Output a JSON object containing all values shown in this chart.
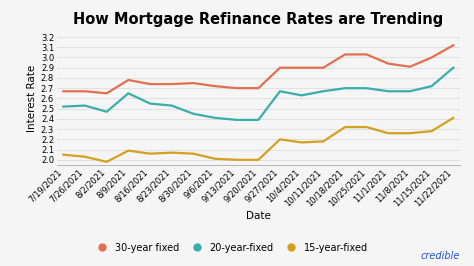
{
  "title": "How Mortgage Refinance Rates are Trending",
  "xlabel": "Date",
  "ylabel": "Interest Rate",
  "dates": [
    "7/19/2021",
    "7/26/2021",
    "8/2/2021",
    "8/9/2021",
    "8/16/2021",
    "8/23/2021",
    "8/30/2021",
    "9/6/2021",
    "9/13/2021",
    "9/20/2021",
    "9/27/2021",
    "10/4/2021",
    "10/11/2021",
    "10/18/2021",
    "10/25/2021",
    "11/1/2021",
    "11/8/2021",
    "11/15/2021",
    "11/22/2021"
  ],
  "rate_30yr": [
    2.67,
    2.67,
    2.65,
    2.78,
    2.74,
    2.74,
    2.75,
    2.72,
    2.7,
    2.7,
    2.9,
    2.9,
    2.9,
    3.03,
    3.03,
    2.94,
    2.91,
    3.0,
    3.12
  ],
  "rate_20yr": [
    2.52,
    2.53,
    2.47,
    2.65,
    2.55,
    2.53,
    2.45,
    2.41,
    2.39,
    2.39,
    2.67,
    2.63,
    2.67,
    2.7,
    2.7,
    2.67,
    2.67,
    2.72,
    2.9
  ],
  "rate_15yr": [
    2.05,
    2.03,
    1.98,
    2.09,
    2.06,
    2.07,
    2.06,
    2.01,
    2.0,
    2.0,
    2.2,
    2.17,
    2.18,
    2.32,
    2.32,
    2.26,
    2.26,
    2.28,
    2.41
  ],
  "color_30yr": "#E07050",
  "color_20yr": "#3AADAD",
  "color_15yr": "#D4A020",
  "ylim_min": 1.95,
  "ylim_max": 3.25,
  "yticks": [
    2.0,
    2.1,
    2.2,
    2.3,
    2.4,
    2.5,
    2.6,
    2.7,
    2.8,
    2.9,
    3.0,
    3.1,
    3.2
  ],
  "background_color": "#f5f5f5",
  "grid_color": "#dddddd",
  "credible_color": "#2255cc",
  "legend_labels": [
    "30-year fixed",
    "20-year-fixed",
    "15-year-fixed"
  ],
  "title_fontsize": 10.5,
  "axis_label_fontsize": 7.5,
  "tick_fontsize": 6,
  "legend_fontsize": 7
}
